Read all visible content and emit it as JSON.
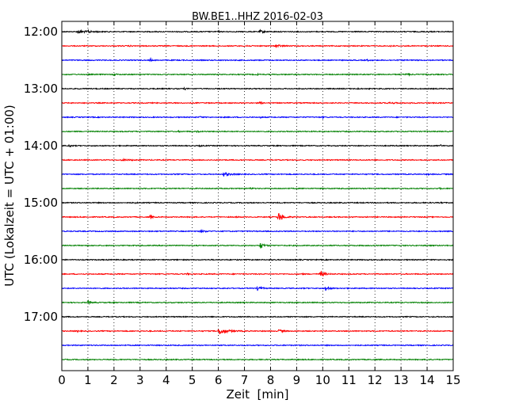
{
  "chart_data": {
    "type": "line",
    "title": "BW.BE1..HHZ 2016-02-03",
    "xlabel": "Zeit  [min]",
    "ylabel": "UTC (Lokalzeit = UTC + 01:00)",
    "xlim": [
      0,
      15
    ],
    "xticks": [
      0,
      1,
      2,
      3,
      4,
      5,
      6,
      7,
      8,
      9,
      10,
      11,
      12,
      13,
      14,
      15
    ],
    "xtick_labels": [
      "0",
      "1",
      "2",
      "3",
      "4",
      "5",
      "6",
      "7",
      "8",
      "9",
      "10",
      "11",
      "12",
      "13",
      "14",
      "15"
    ],
    "grid": "vertical dotted",
    "row_interval_min": 15,
    "color_cycle": [
      "#000000",
      "#ff0000",
      "#0000ff",
      "#008000"
    ],
    "ytick_labels": [
      "12:00",
      "13:00",
      "14:00",
      "15:00",
      "16:00",
      "17:00"
    ],
    "series": [
      {
        "start": "12:00",
        "color": "#000000",
        "events": [
          {
            "t": 0.6,
            "a": 0.8,
            "w": 0.25
          },
          {
            "t": 1.0,
            "a": 1.2,
            "w": 0.05
          },
          {
            "t": 1.35,
            "a": 0.6,
            "w": 0.04
          },
          {
            "t": 4.6,
            "a": 0.4,
            "w": 0.04
          },
          {
            "t": 6.0,
            "a": 0.5,
            "w": 0.04
          },
          {
            "t": 7.6,
            "a": 0.6,
            "w": 0.15
          },
          {
            "t": 14.0,
            "a": 0.5,
            "w": 0.06
          }
        ]
      },
      {
        "start": "12:15",
        "color": "#ff0000",
        "events": [
          {
            "t": 2.6,
            "a": 0.4,
            "w": 0.04
          },
          {
            "t": 7.1,
            "a": 0.4,
            "w": 0.05
          },
          {
            "t": 8.2,
            "a": 0.8,
            "w": 0.15
          },
          {
            "t": 12.6,
            "a": 0.3,
            "w": 0.1
          }
        ]
      },
      {
        "start": "12:30",
        "color": "#0000ff",
        "events": [
          {
            "t": 3.4,
            "a": 0.7,
            "w": 0.04
          },
          {
            "t": 11.7,
            "a": 0.5,
            "w": 0.04
          }
        ]
      },
      {
        "start": "12:45",
        "color": "#008000",
        "events": [
          {
            "t": 2.0,
            "a": 0.5,
            "w": 0.06
          },
          {
            "t": 7.5,
            "a": 0.5,
            "w": 0.04
          },
          {
            "t": 13.2,
            "a": 0.4,
            "w": 0.15
          }
        ]
      },
      {
        "start": "13:00",
        "color": "#000000",
        "events": [
          {
            "t": 4.7,
            "a": 0.6,
            "w": 0.06
          },
          {
            "t": 11.3,
            "a": 0.3,
            "w": 0.05
          }
        ]
      },
      {
        "start": "13:15",
        "color": "#ff0000",
        "events": [
          {
            "t": 7.6,
            "a": 0.7,
            "w": 0.06
          },
          {
            "t": 13.3,
            "a": 0.5,
            "w": 0.04
          },
          {
            "t": 12.5,
            "a": 0.3,
            "w": 0.3
          }
        ]
      },
      {
        "start": "13:30",
        "color": "#0000ff",
        "events": [
          {
            "t": 5.3,
            "a": 0.5,
            "w": 0.04
          },
          {
            "t": 7.6,
            "a": 0.4,
            "w": 0.04
          },
          {
            "t": 10.0,
            "a": 0.3,
            "w": 0.04
          }
        ]
      },
      {
        "start": "13:45",
        "color": "#008000",
        "events": [
          {
            "t": 4.5,
            "a": 0.4,
            "w": 0.04
          },
          {
            "t": 5.2,
            "a": 0.6,
            "w": 0.04
          }
        ]
      },
      {
        "start": "14:00",
        "color": "#000000",
        "events": [
          {
            "t": 0.3,
            "a": 0.8,
            "w": 0.04
          },
          {
            "t": 5.3,
            "a": 0.6,
            "w": 0.04
          },
          {
            "t": 14.5,
            "a": 0.6,
            "w": 0.05
          }
        ]
      },
      {
        "start": "14:15",
        "color": "#ff0000",
        "events": [
          {
            "t": 2.3,
            "a": 0.3,
            "w": 0.3
          }
        ]
      },
      {
        "start": "14:30",
        "color": "#0000ff",
        "events": [
          {
            "t": 6.2,
            "a": 1.0,
            "w": 0.18
          },
          {
            "t": 14.0,
            "a": 0.3,
            "w": 0.05
          }
        ]
      },
      {
        "start": "14:45",
        "color": "#008000",
        "events": [
          {
            "t": 7.2,
            "a": 0.5,
            "w": 0.08
          },
          {
            "t": 14.5,
            "a": 0.7,
            "w": 0.03
          }
        ]
      },
      {
        "start": "15:00",
        "color": "#000000",
        "events": [
          {
            "t": 2.8,
            "a": 0.4,
            "w": 0.04
          },
          {
            "t": 14.5,
            "a": 0.4,
            "w": 0.04
          }
        ]
      },
      {
        "start": "15:15",
        "color": "#ff0000",
        "events": [
          {
            "t": 3.4,
            "a": 1.0,
            "w": 0.06
          },
          {
            "t": 6.7,
            "a": 0.4,
            "w": 0.04
          },
          {
            "t": 8.3,
            "a": 2.4,
            "w": 0.15
          }
        ]
      },
      {
        "start": "15:30",
        "color": "#0000ff",
        "events": [
          {
            "t": 5.3,
            "a": 0.6,
            "w": 0.15
          }
        ]
      },
      {
        "start": "15:45",
        "color": "#008000",
        "events": [
          {
            "t": 7.6,
            "a": 1.6,
            "w": 0.12
          },
          {
            "t": 12.0,
            "a": 0.3,
            "w": 0.05
          }
        ]
      },
      {
        "start": "16:00",
        "color": "#000000",
        "events": [
          {
            "t": 8.0,
            "a": 0.3,
            "w": 0.05
          }
        ]
      },
      {
        "start": "16:15",
        "color": "#ff0000",
        "events": [
          {
            "t": 4.8,
            "a": 0.3,
            "w": 0.06
          },
          {
            "t": 9.2,
            "a": 0.5,
            "w": 0.03
          },
          {
            "t": 9.9,
            "a": 1.8,
            "w": 0.12
          }
        ]
      },
      {
        "start": "16:30",
        "color": "#0000ff",
        "events": [
          {
            "t": 7.5,
            "a": 1.0,
            "w": 0.12
          },
          {
            "t": 10.1,
            "a": 1.6,
            "w": 0.1
          }
        ]
      },
      {
        "start": "16:45",
        "color": "#008000",
        "events": [
          {
            "t": 1.0,
            "a": 0.8,
            "w": 0.1
          }
        ]
      },
      {
        "start": "17:00",
        "color": "#000000",
        "events": []
      },
      {
        "start": "17:15",
        "color": "#ff0000",
        "events": [
          {
            "t": 0.6,
            "a": 0.5,
            "w": 0.03
          },
          {
            "t": 3.3,
            "a": 0.3,
            "w": 0.04
          },
          {
            "t": 6.0,
            "a": 1.8,
            "w": 0.25
          },
          {
            "t": 8.3,
            "a": 0.8,
            "w": 0.12
          }
        ]
      },
      {
        "start": "17:30",
        "color": "#0000ff",
        "events": []
      },
      {
        "start": "17:45",
        "color": "#008000",
        "events": []
      }
    ]
  }
}
